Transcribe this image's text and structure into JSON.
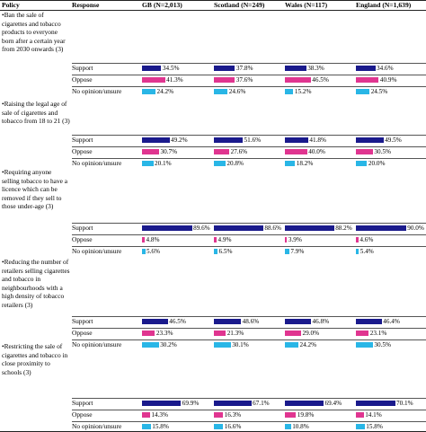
{
  "headers": {
    "policy": "Policy",
    "response": "Response",
    "gb": "GB (N=2,013)",
    "scotland": "Scotland (N=249)",
    "wales": "Wales (N=117)",
    "england": "England (N=1,639)"
  },
  "colors": {
    "support": "#1a1a8c",
    "oppose": "#e03590",
    "no_opinion": "#29b6e6"
  },
  "response_labels": [
    "Support",
    "Oppose",
    "No opinion/unsure"
  ],
  "policies": [
    {
      "label": "•Ban the sale of cigarettes and tobacco products to everyone born after a certain year from 2030 onwards (3)",
      "values": {
        "gb": [
          "34.5%",
          "41.3%",
          "24.2%"
        ],
        "scotland": [
          "37.8%",
          "37.6%",
          "24.6%"
        ],
        "wales": [
          "38.3%",
          "46.5%",
          "15.2%"
        ],
        "england": [
          "34.6%",
          "40.9%",
          "24.5%"
        ]
      },
      "numbers": {
        "gb": [
          34.5,
          41.3,
          24.2
        ],
        "scotland": [
          37.8,
          37.6,
          24.6
        ],
        "wales": [
          38.3,
          46.5,
          15.2
        ],
        "england": [
          34.6,
          40.9,
          24.5
        ]
      }
    },
    {
      "label": "•Raising the legal age of sale of cigarettes and tobacco from 18 to 21 (3)",
      "values": {
        "gb": [
          "49.2%",
          "30.7%",
          "20.1%"
        ],
        "scotland": [
          "51.6%",
          "27.6%",
          "20.8%"
        ],
        "wales": [
          "41.8%",
          "40.0%",
          "18.2%"
        ],
        "england": [
          "49.5%",
          "30.5%",
          "20.0%"
        ]
      },
      "numbers": {
        "gb": [
          49.2,
          30.7,
          20.1
        ],
        "scotland": [
          51.6,
          27.6,
          20.8
        ],
        "wales": [
          41.8,
          40.0,
          18.2
        ],
        "england": [
          49.5,
          30.5,
          20.0
        ]
      }
    },
    {
      "label": "•Requiring anyone selling tobacco to have a licence which can be removed if they sell to those under-age (3)",
      "values": {
        "gb": [
          "89.6%",
          "4.8%",
          "5.6%"
        ],
        "scotland": [
          "88.6%",
          "4.9%",
          "6.5%"
        ],
        "wales": [
          "88.2%",
          "3.9%",
          "7.9%"
        ],
        "england": [
          "90.0%",
          "4.6%",
          "5.4%"
        ]
      },
      "numbers": {
        "gb": [
          89.6,
          4.8,
          5.6
        ],
        "scotland": [
          88.6,
          4.9,
          6.5
        ],
        "wales": [
          88.2,
          3.9,
          7.9
        ],
        "england": [
          90.0,
          4.6,
          5.4
        ]
      }
    },
    {
      "label": "•Reducing the number of retailers selling cigarettes and tobacco in neighbourhoods with a high density of tobacco retailers (3)",
      "values": {
        "gb": [
          "46.5%",
          "23.3%",
          "30.2%"
        ],
        "scotland": [
          "48.6%",
          "21.3%",
          "30.1%"
        ],
        "wales": [
          "46.8%",
          "29.0%",
          "24.2%"
        ],
        "england": [
          "46.4%",
          "23.1%",
          "30.5%"
        ]
      },
      "numbers": {
        "gb": [
          46.5,
          23.3,
          30.2
        ],
        "scotland": [
          48.6,
          21.3,
          30.1
        ],
        "wales": [
          46.8,
          29.0,
          24.2
        ],
        "england": [
          46.4,
          23.1,
          30.5
        ]
      }
    },
    {
      "label": "•Restricting the sale of cigarettes and tobacco in close proximity to schools (3)",
      "values": {
        "gb": [
          "69.9%",
          "14.3%",
          "15.8%"
        ],
        "scotland": [
          "67.1%",
          "16.3%",
          "16.6%"
        ],
        "wales": [
          "69.4%",
          "19.8%",
          "10.8%"
        ],
        "england": [
          "70.1%",
          "14.1%",
          "15.8%"
        ]
      },
      "numbers": {
        "gb": [
          69.9,
          14.3,
          15.8
        ],
        "scotland": [
          67.1,
          16.3,
          16.6
        ],
        "wales": [
          69.4,
          19.8,
          10.8
        ],
        "england": [
          70.1,
          14.1,
          15.8
        ]
      }
    }
  ]
}
